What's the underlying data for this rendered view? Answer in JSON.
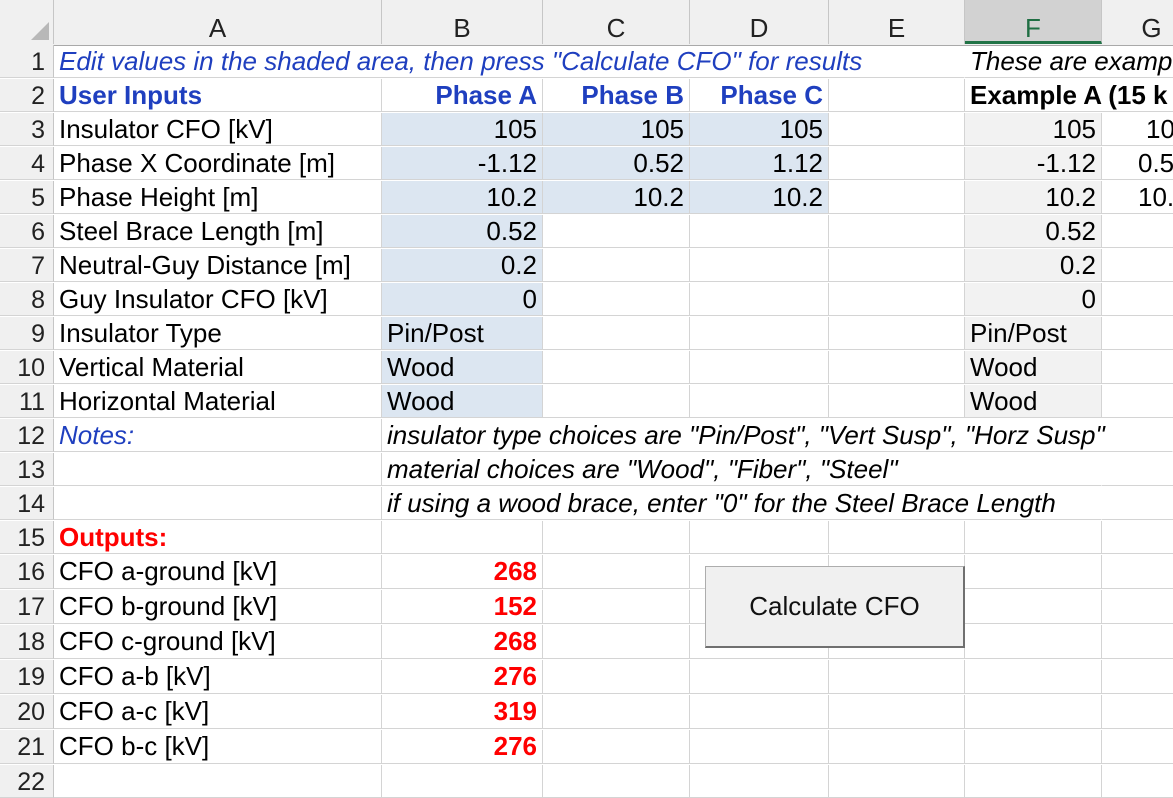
{
  "columns": [
    "A",
    "B",
    "C",
    "D",
    "E",
    "F",
    "G"
  ],
  "selected_column": "F",
  "rows": {
    "r1": {
      "num": "1",
      "A": "Edit values in the shaded area, then press \"Calculate CFO\" for results",
      "F": "These are examp"
    },
    "r2": {
      "num": "2",
      "A": "User Inputs",
      "B": "Phase A",
      "C": "Phase B",
      "D": "Phase C",
      "F": "Example A (15 k"
    },
    "r3": {
      "num": "3",
      "A": "Insulator CFO [kV]",
      "B": "105",
      "C": "105",
      "D": "105",
      "F": "105",
      "G": "10"
    },
    "r4": {
      "num": "4",
      "A": "Phase X Coordinate [m]",
      "B": "-1.12",
      "C": "0.52",
      "D": "1.12",
      "F": "-1.12",
      "G": "0.5"
    },
    "r5": {
      "num": "5",
      "A": "Phase Height [m]",
      "B": "10.2",
      "C": "10.2",
      "D": "10.2",
      "F": "10.2",
      "G": "10."
    },
    "r6": {
      "num": "6",
      "A": "Steel Brace Length [m]",
      "B": "0.52",
      "F": "0.52"
    },
    "r7": {
      "num": "7",
      "A": "Neutral-Guy Distance [m]",
      "B": "0.2",
      "F": "0.2"
    },
    "r8": {
      "num": "8",
      "A": "Guy Insulator CFO [kV]",
      "B": "0",
      "F": "0"
    },
    "r9": {
      "num": "9",
      "A": "Insulator Type",
      "B": "Pin/Post",
      "F": "Pin/Post"
    },
    "r10": {
      "num": "10",
      "A": "Vertical Material",
      "B": "Wood",
      "F": "Wood"
    },
    "r11": {
      "num": "11",
      "A": "Horizontal Material",
      "B": "Wood",
      "F": "Wood"
    },
    "r12": {
      "num": "12",
      "A": "Notes:",
      "B": "insulator type choices are \"Pin/Post\", \"Vert Susp\", \"Horz Susp\""
    },
    "r13": {
      "num": "13",
      "B": "material choices are \"Wood\", \"Fiber\", \"Steel\""
    },
    "r14": {
      "num": "14",
      "B": "if using a wood brace, enter \"0\" for the Steel Brace Length"
    },
    "r15": {
      "num": "15",
      "A": "Outputs:"
    },
    "r16": {
      "num": "16",
      "A": "CFO a-ground [kV]",
      "B": "268"
    },
    "r17": {
      "num": "17",
      "A": "CFO b-ground [kV]",
      "B": "152"
    },
    "r18": {
      "num": "18",
      "A": "CFO c-ground [kV]",
      "B": "268"
    },
    "r19": {
      "num": "19",
      "A": "CFO a-b [kV]",
      "B": "276"
    },
    "r20": {
      "num": "20",
      "A": "CFO a-c [kV]",
      "B": "319"
    },
    "r21": {
      "num": "21",
      "A": "CFO b-c [kV]",
      "B": "276"
    },
    "r22": {
      "num": "22"
    }
  },
  "button": {
    "label": "Calculate CFO"
  },
  "colors": {
    "shade": "#dce6f1",
    "example_shade": "#f2f2f2",
    "blue_text": "#1f3fbf",
    "red_text": "#ff0000",
    "selected_header": "#217346"
  }
}
